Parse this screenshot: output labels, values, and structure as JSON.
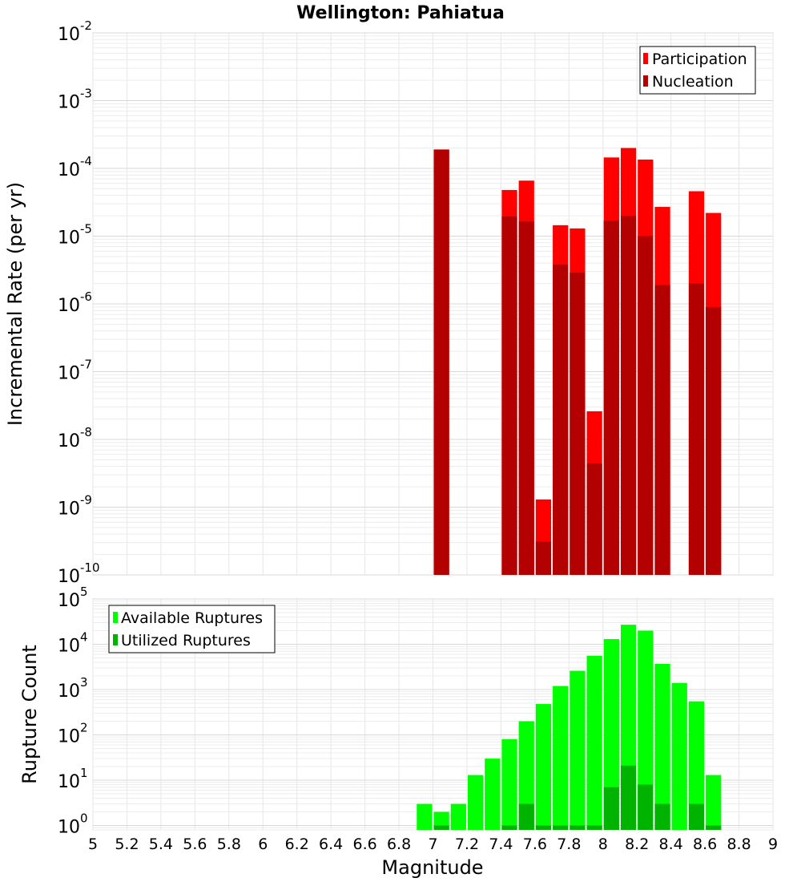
{
  "chart_data": [
    {
      "type": "bar",
      "title": "Wellington: Pahiatua",
      "xlabel": "",
      "ylabel": "Incremental Rate (per yr)",
      "yscale": "log",
      "xlim": [
        5,
        9
      ],
      "ylim": [
        1e-10,
        0.01
      ],
      "ytick_exponents": [
        -10,
        -9,
        -8,
        -7,
        -6,
        -5,
        -4,
        -3,
        -2
      ],
      "bin_width": 0.1,
      "legend_position": "top-right",
      "grid": true,
      "series": [
        {
          "name": "Participation",
          "color": "#ff0000",
          "x": [
            7.05,
            7.45,
            7.55,
            7.65,
            7.75,
            7.85,
            7.95,
            8.05,
            8.15,
            8.25,
            8.35,
            8.55,
            8.65
          ],
          "values": [
            0.00019,
            4.8e-05,
            6.6e-05,
            1.3e-09,
            1.45e-05,
            1.3e-05,
            2.6e-08,
            0.000145,
            0.0002,
            0.000135,
            2.7e-05,
            4.6e-05,
            2.2e-05
          ]
        },
        {
          "name": "Nucleation",
          "color": "#b30000",
          "x": [
            7.05,
            7.45,
            7.55,
            7.65,
            7.75,
            7.85,
            7.95,
            8.05,
            8.15,
            8.25,
            8.35,
            8.55,
            8.65
          ],
          "values": [
            0.00019,
            1.95e-05,
            1.65e-05,
            3.1e-10,
            3.8e-06,
            2.9e-06,
            4.4e-09,
            1.7e-05,
            2e-05,
            1e-05,
            1.9e-06,
            2e-06,
            9e-07
          ]
        }
      ]
    },
    {
      "type": "bar",
      "title": "",
      "xlabel": "Magnitude",
      "ylabel": "Rupture Count",
      "yscale": "log",
      "xlim": [
        5,
        9
      ],
      "ylim": [
        0.8,
        100000
      ],
      "ytick_exponents": [
        0,
        1,
        2,
        3,
        4,
        5
      ],
      "xticks": [
        "5",
        "5.2",
        "5.4",
        "5.6",
        "5.8",
        "6",
        "6.2",
        "6.4",
        "6.6",
        "6.8",
        "7",
        "7.2",
        "7.4",
        "7.6",
        "7.8",
        "8",
        "8.2",
        "8.4",
        "8.6",
        "8.8",
        "9"
      ],
      "bin_width": 0.1,
      "legend_position": "top-left",
      "grid": true,
      "series": [
        {
          "name": "Available Ruptures",
          "color": "#00ff00",
          "x": [
            6.95,
            7.05,
            7.15,
            7.25,
            7.35,
            7.45,
            7.55,
            7.65,
            7.75,
            7.85,
            7.95,
            8.05,
            8.15,
            8.25,
            8.35,
            8.45,
            8.55,
            8.65
          ],
          "values": [
            3,
            2,
            3,
            13,
            30,
            80,
            200,
            480,
            1200,
            2600,
            5600,
            13000,
            27000,
            20000,
            3700,
            1400,
            550,
            13
          ]
        },
        {
          "name": "Utilized Ruptures",
          "color": "#00b300",
          "x": [
            7.05,
            7.45,
            7.55,
            7.65,
            7.75,
            7.85,
            7.95,
            8.05,
            8.15,
            8.25,
            8.35,
            8.55,
            8.65
          ],
          "values": [
            1,
            1,
            3,
            1,
            1,
            1,
            1,
            7,
            21,
            8,
            3,
            3,
            1
          ]
        }
      ]
    }
  ]
}
